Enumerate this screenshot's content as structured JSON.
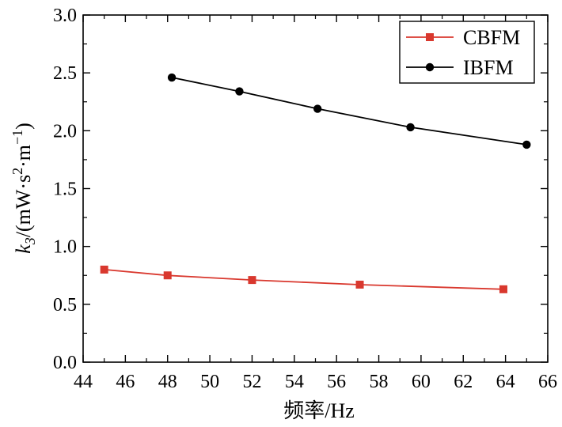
{
  "chart_data": {
    "type": "line",
    "xlabel": "频率/Hz",
    "ylabel_parts": {
      "var": "k",
      "sub": "3",
      "mid": "/(mW·s",
      "sup1": "2",
      "mid2": "·m",
      "sup2": "−1",
      "end": ")"
    },
    "xlim": [
      44,
      66
    ],
    "ylim": [
      0,
      3.0
    ],
    "xticks": [
      "44",
      "46",
      "48",
      "50",
      "52",
      "54",
      "56",
      "58",
      "60",
      "62",
      "64",
      "66"
    ],
    "yticks": [
      "0.0",
      "0.5",
      "1.0",
      "1.5",
      "2.0",
      "2.5",
      "3.0"
    ],
    "grid": false,
    "legend_position": "top-right",
    "series": [
      {
        "name": "CBFM",
        "color": "#d9382e",
        "marker": "square",
        "x": [
          45.0,
          48.0,
          52.0,
          57.1,
          63.9
        ],
        "y": [
          0.8,
          0.75,
          0.71,
          0.67,
          0.63
        ]
      },
      {
        "name": "IBFM",
        "color": "#000000",
        "marker": "circle",
        "x": [
          48.2,
          51.4,
          55.1,
          59.5,
          65.0
        ],
        "y": [
          2.46,
          2.34,
          2.19,
          2.03,
          1.88
        ]
      }
    ]
  }
}
